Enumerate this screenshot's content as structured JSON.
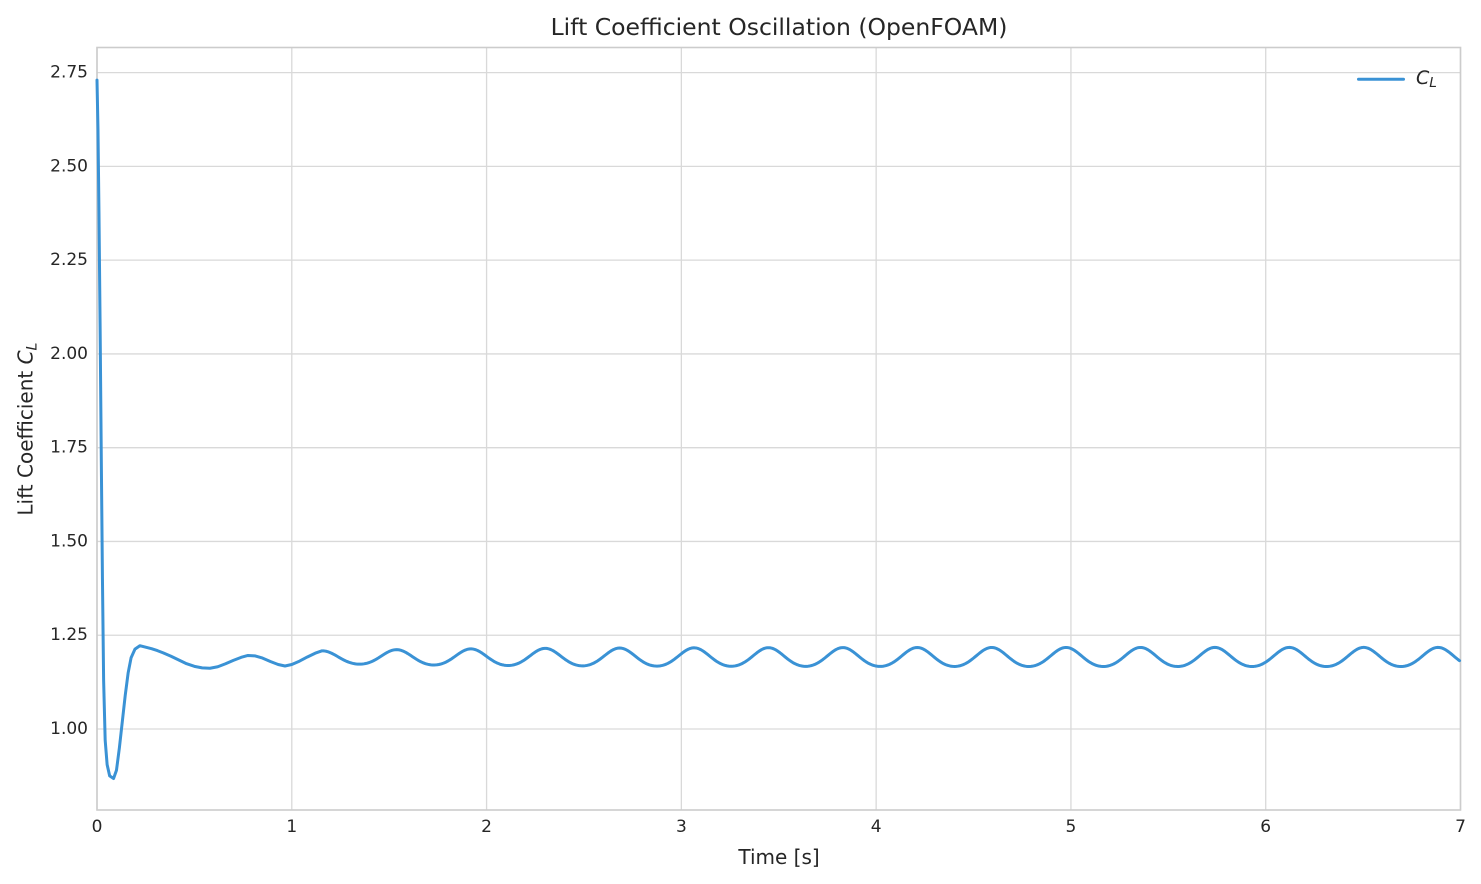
{
  "figure": {
    "title": "Lift Coefficient Oscillation (OpenFOAM)",
    "xlabel": "Time [s]",
    "ylabel_prefix": "Lift Coefficient ",
    "ylabel_math_main": "C",
    "ylabel_math_sub": "L",
    "legend": {
      "label_main": "C",
      "label_sub": "L"
    },
    "colors": {
      "line": "#3A92D5",
      "grid": "#D9D9D9",
      "spine": "#CCCCCC",
      "text": "#262626",
      "background": "#FFFFFF"
    }
  },
  "chart_data": {
    "type": "line",
    "title": "Lift Coefficient Oscillation (OpenFOAM)",
    "xlabel": "Time [s]",
    "ylabel": "Lift Coefficient C_L",
    "xlim": [
      0,
      7
    ],
    "ylim": [
      0.784,
      2.817
    ],
    "xticks": [
      0,
      1,
      2,
      3,
      4,
      5,
      6,
      7
    ],
    "xtick_labels": [
      "0",
      "1",
      "2",
      "3",
      "4",
      "5",
      "6",
      "7"
    ],
    "yticks": [
      1.0,
      1.25,
      1.5,
      1.75,
      2.0,
      2.25,
      2.5,
      2.75
    ],
    "ytick_labels": [
      "1.00",
      "1.25",
      "1.50",
      "1.75",
      "2.00",
      "2.25",
      "2.50",
      "2.75"
    ],
    "grid": true,
    "legend": {
      "position": "upper right",
      "entries": [
        {
          "label": "C_L",
          "color": "#3A92D5"
        }
      ]
    },
    "series": [
      {
        "name": "C_L",
        "color": "#3A92D5",
        "line_width": 3,
        "description": "Lift coefficient vs time: initial spike at 2.73 drops to minimum 0.87 near t=0.09 s, overshoots to 1.22 at t=0.22 s, then settles into periodic vortex-shedding oscillation, mean 1.19, peak 1.217, trough 1.167, period 0.382 s, through t=7 s",
        "transient_points": [
          [
            0.0,
            2.73
          ],
          [
            0.005,
            2.6
          ],
          [
            0.01,
            2.38
          ],
          [
            0.016,
            2.07
          ],
          [
            0.022,
            1.72
          ],
          [
            0.028,
            1.4
          ],
          [
            0.034,
            1.13
          ],
          [
            0.042,
            0.97
          ],
          [
            0.052,
            0.905
          ],
          [
            0.065,
            0.875
          ],
          [
            0.085,
            0.868
          ],
          [
            0.1,
            0.89
          ],
          [
            0.115,
            0.95
          ],
          [
            0.13,
            1.02
          ],
          [
            0.145,
            1.09
          ],
          [
            0.16,
            1.15
          ],
          [
            0.175,
            1.19
          ],
          [
            0.195,
            1.213
          ],
          [
            0.22,
            1.222
          ],
          [
            0.25,
            1.218
          ],
          [
            0.28,
            1.214
          ],
          [
            0.31,
            1.209
          ],
          [
            0.34,
            1.203
          ],
          [
            0.38,
            1.194
          ],
          [
            0.42,
            1.184
          ],
          [
            0.46,
            1.174
          ],
          [
            0.5,
            1.167
          ],
          [
            0.54,
            1.163
          ],
          [
            0.58,
            1.162
          ],
          [
            0.62,
            1.166
          ],
          [
            0.66,
            1.174
          ],
          [
            0.7,
            1.183
          ],
          [
            0.74,
            1.191
          ],
          [
            0.775,
            1.196
          ],
          [
            0.81,
            1.195
          ],
          [
            0.85,
            1.189
          ],
          [
            0.89,
            1.18
          ],
          [
            0.93,
            1.172
          ],
          [
            0.965,
            1.168
          ],
          [
            1.0,
            1.172
          ],
          [
            1.04,
            1.181
          ],
          [
            1.08,
            1.192
          ],
          [
            1.12,
            1.202
          ]
        ],
        "oscillation": {
          "t_start": 1.155,
          "t_end": 7.0,
          "mean": 1.19,
          "amplitude": 0.0255,
          "amplitude_start": 0.017,
          "ramp_tau": 0.9,
          "period": 0.382,
          "harmonic2": 0.08
        }
      }
    ]
  }
}
